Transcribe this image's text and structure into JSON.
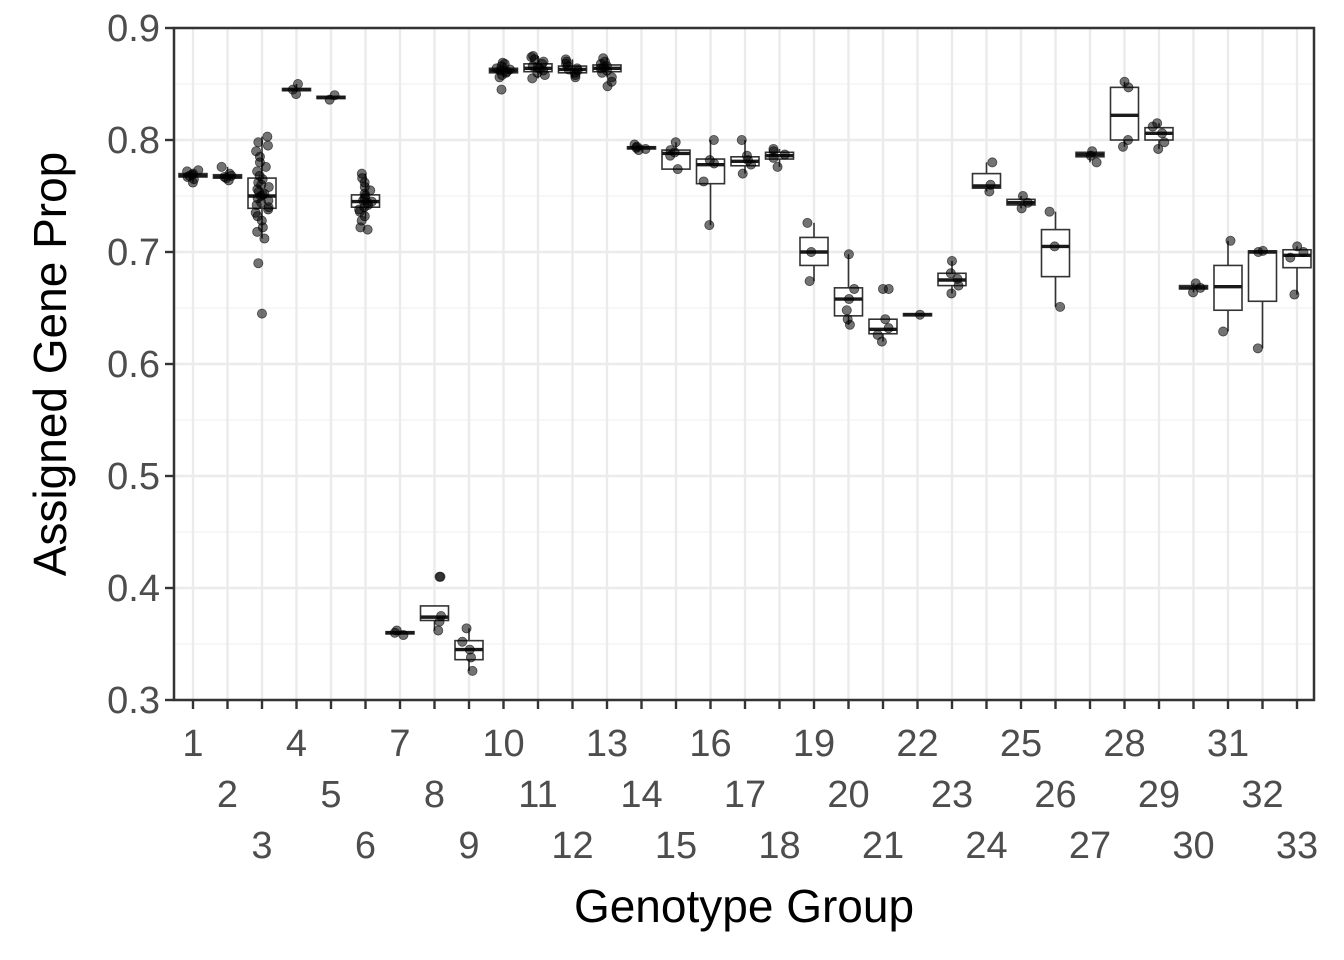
{
  "chart_data": {
    "type": "box",
    "xlabel": "Genotype Group",
    "ylabel": "Assigned Gene Prop",
    "ylim": [
      0.3,
      0.9
    ],
    "y_ticks": [
      "0.3",
      "0.4",
      "0.5",
      "0.6",
      "0.7",
      "0.8",
      "0.9"
    ],
    "grid": true,
    "categories": [
      "1",
      "2",
      "3",
      "4",
      "5",
      "6",
      "7",
      "8",
      "9",
      "10",
      "11",
      "12",
      "13",
      "14",
      "15",
      "16",
      "17",
      "18",
      "19",
      "20",
      "21",
      "22",
      "23",
      "24",
      "25",
      "26",
      "27",
      "28",
      "29",
      "30",
      "31",
      "32",
      "33"
    ],
    "boxes": [
      {
        "group": "1",
        "q1": 0.767,
        "median": 0.768,
        "q3": 0.77,
        "whisker_low": 0.762,
        "whisker_high": 0.773,
        "points": [
          0.762,
          0.765,
          0.767,
          0.768,
          0.769,
          0.77,
          0.772,
          0.773
        ]
      },
      {
        "group": "2",
        "q1": 0.766,
        "median": 0.767,
        "q3": 0.769,
        "whisker_low": 0.764,
        "whisker_high": 0.776,
        "points": [
          0.764,
          0.766,
          0.767,
          0.768,
          0.77,
          0.776
        ]
      },
      {
        "group": "3",
        "q1": 0.739,
        "median": 0.75,
        "q3": 0.766,
        "whisker_low": 0.712,
        "whisker_high": 0.803,
        "points": [
          0.645,
          0.69,
          0.712,
          0.718,
          0.722,
          0.728,
          0.732,
          0.735,
          0.738,
          0.74,
          0.742,
          0.744,
          0.746,
          0.748,
          0.75,
          0.751,
          0.752,
          0.754,
          0.756,
          0.758,
          0.76,
          0.762,
          0.765,
          0.768,
          0.772,
          0.776,
          0.78,
          0.785,
          0.79,
          0.795,
          0.798,
          0.803
        ]
      },
      {
        "group": "4",
        "q1": 0.844,
        "median": 0.845,
        "q3": 0.846,
        "whisker_low": 0.843,
        "whisker_high": 0.85,
        "points": [
          0.841,
          0.845,
          0.85
        ]
      },
      {
        "group": "5",
        "q1": 0.837,
        "median": 0.838,
        "q3": 0.839,
        "whisker_low": 0.836,
        "whisker_high": 0.84,
        "points": [
          0.836,
          0.84
        ]
      },
      {
        "group": "6",
        "q1": 0.74,
        "median": 0.745,
        "q3": 0.751,
        "whisker_low": 0.73,
        "whisker_high": 0.77,
        "points": [
          0.72,
          0.722,
          0.728,
          0.732,
          0.736,
          0.738,
          0.74,
          0.742,
          0.744,
          0.745,
          0.746,
          0.748,
          0.75,
          0.752,
          0.755,
          0.758,
          0.762,
          0.766,
          0.77
        ]
      },
      {
        "group": "7",
        "q1": 0.359,
        "median": 0.36,
        "q3": 0.361,
        "whisker_low": 0.358,
        "whisker_high": 0.362,
        "points": [
          0.358,
          0.36,
          0.362
        ]
      },
      {
        "group": "8",
        "q1": 0.371,
        "median": 0.374,
        "q3": 0.384,
        "whisker_low": 0.362,
        "whisker_high": 0.384,
        "points": [
          0.362,
          0.37,
          0.375,
          0.41,
          0.41
        ]
      },
      {
        "group": "9",
        "q1": 0.336,
        "median": 0.345,
        "q3": 0.353,
        "whisker_low": 0.326,
        "whisker_high": 0.364,
        "points": [
          0.326,
          0.338,
          0.345,
          0.352,
          0.364
        ]
      },
      {
        "group": "10",
        "q1": 0.86,
        "median": 0.862,
        "q3": 0.864,
        "whisker_low": 0.856,
        "whisker_high": 0.869,
        "points": [
          0.845,
          0.856,
          0.858,
          0.86,
          0.861,
          0.862,
          0.863,
          0.864,
          0.866,
          0.868,
          0.869
        ]
      },
      {
        "group": "11",
        "q1": 0.861,
        "median": 0.864,
        "q3": 0.868,
        "whisker_low": 0.855,
        "whisker_high": 0.875,
        "points": [
          0.855,
          0.858,
          0.86,
          0.862,
          0.864,
          0.865,
          0.866,
          0.868,
          0.87,
          0.872,
          0.874,
          0.875
        ]
      },
      {
        "group": "12",
        "q1": 0.86,
        "median": 0.863,
        "q3": 0.866,
        "whisker_low": 0.856,
        "whisker_high": 0.872,
        "points": [
          0.856,
          0.858,
          0.86,
          0.862,
          0.863,
          0.864,
          0.866,
          0.868,
          0.87,
          0.872
        ]
      },
      {
        "group": "13",
        "q1": 0.861,
        "median": 0.864,
        "q3": 0.867,
        "whisker_low": 0.856,
        "whisker_high": 0.873,
        "points": [
          0.848,
          0.852,
          0.856,
          0.86,
          0.862,
          0.864,
          0.865,
          0.866,
          0.868,
          0.87,
          0.873
        ]
      },
      {
        "group": "14",
        "q1": 0.792,
        "median": 0.793,
        "q3": 0.794,
        "whisker_low": 0.791,
        "whisker_high": 0.796,
        "points": [
          0.791,
          0.792,
          0.793,
          0.794,
          0.796
        ]
      },
      {
        "group": "15",
        "q1": 0.774,
        "median": 0.788,
        "q3": 0.791,
        "whisker_low": 0.774,
        "whisker_high": 0.798,
        "points": [
          0.774,
          0.786,
          0.789,
          0.791,
          0.798
        ]
      },
      {
        "group": "16",
        "q1": 0.761,
        "median": 0.778,
        "q3": 0.783,
        "whisker_low": 0.724,
        "whisker_high": 0.8,
        "points": [
          0.724,
          0.763,
          0.779,
          0.782,
          0.8
        ]
      },
      {
        "group": "17",
        "q1": 0.777,
        "median": 0.781,
        "q3": 0.785,
        "whisker_low": 0.77,
        "whisker_high": 0.8,
        "points": [
          0.77,
          0.778,
          0.782,
          0.786,
          0.8
        ]
      },
      {
        "group": "18",
        "q1": 0.783,
        "median": 0.786,
        "q3": 0.789,
        "whisker_low": 0.776,
        "whisker_high": 0.792,
        "points": [
          0.776,
          0.784,
          0.787,
          0.79,
          0.792
        ]
      },
      {
        "group": "19",
        "q1": 0.688,
        "median": 0.7,
        "q3": 0.713,
        "whisker_low": 0.674,
        "whisker_high": 0.726,
        "points": [
          0.674,
          0.7,
          0.726
        ]
      },
      {
        "group": "20",
        "q1": 0.643,
        "median": 0.658,
        "q3": 0.668,
        "whisker_low": 0.635,
        "whisker_high": 0.698,
        "points": [
          0.635,
          0.64,
          0.648,
          0.658,
          0.667,
          0.698
        ]
      },
      {
        "group": "21",
        "q1": 0.627,
        "median": 0.631,
        "q3": 0.64,
        "whisker_low": 0.62,
        "whisker_high": 0.64,
        "points": [
          0.62,
          0.626,
          0.632,
          0.64,
          0.667,
          0.667
        ]
      },
      {
        "group": "22",
        "q1": 0.643,
        "median": 0.644,
        "q3": 0.645,
        "whisker_low": 0.643,
        "whisker_high": 0.645,
        "points": [
          0.644
        ]
      },
      {
        "group": "23",
        "q1": 0.67,
        "median": 0.675,
        "q3": 0.681,
        "whisker_low": 0.663,
        "whisker_high": 0.692,
        "points": [
          0.663,
          0.67,
          0.676,
          0.681,
          0.692
        ]
      },
      {
        "group": "24",
        "q1": 0.757,
        "median": 0.759,
        "q3": 0.77,
        "whisker_low": 0.754,
        "whisker_high": 0.78,
        "points": [
          0.754,
          0.76,
          0.78
        ]
      },
      {
        "group": "25",
        "q1": 0.742,
        "median": 0.744,
        "q3": 0.747,
        "whisker_low": 0.739,
        "whisker_high": 0.75,
        "points": [
          0.739,
          0.744,
          0.75
        ]
      },
      {
        "group": "26",
        "q1": 0.678,
        "median": 0.705,
        "q3": 0.72,
        "whisker_low": 0.651,
        "whisker_high": 0.736,
        "points": [
          0.651,
          0.705,
          0.736
        ]
      },
      {
        "group": "27",
        "q1": 0.785,
        "median": 0.787,
        "q3": 0.789,
        "whisker_low": 0.78,
        "whisker_high": 0.79,
        "points": [
          0.78,
          0.786,
          0.79
        ]
      },
      {
        "group": "28",
        "q1": 0.8,
        "median": 0.822,
        "q3": 0.847,
        "whisker_low": 0.794,
        "whisker_high": 0.852,
        "points": [
          0.794,
          0.8,
          0.847,
          0.852
        ]
      },
      {
        "group": "29",
        "q1": 0.8,
        "median": 0.806,
        "q3": 0.811,
        "whisker_low": 0.792,
        "whisker_high": 0.815,
        "points": [
          0.792,
          0.798,
          0.806,
          0.812,
          0.815
        ]
      },
      {
        "group": "30",
        "q1": 0.667,
        "median": 0.668,
        "q3": 0.67,
        "whisker_low": 0.664,
        "whisker_high": 0.672,
        "points": [
          0.664,
          0.668,
          0.672
        ]
      },
      {
        "group": "31",
        "q1": 0.648,
        "median": 0.669,
        "q3": 0.688,
        "whisker_low": 0.629,
        "whisker_high": 0.71,
        "points": [
          0.629,
          0.71
        ]
      },
      {
        "group": "32",
        "q1": 0.656,
        "median": 0.7,
        "q3": 0.701,
        "whisker_low": 0.614,
        "whisker_high": 0.701,
        "points": [
          0.614,
          0.7,
          0.701
        ]
      },
      {
        "group": "33",
        "q1": 0.686,
        "median": 0.697,
        "q3": 0.702,
        "whisker_low": 0.662,
        "whisker_high": 0.705,
        "points": [
          0.662,
          0.695,
          0.7,
          0.705
        ]
      }
    ]
  }
}
